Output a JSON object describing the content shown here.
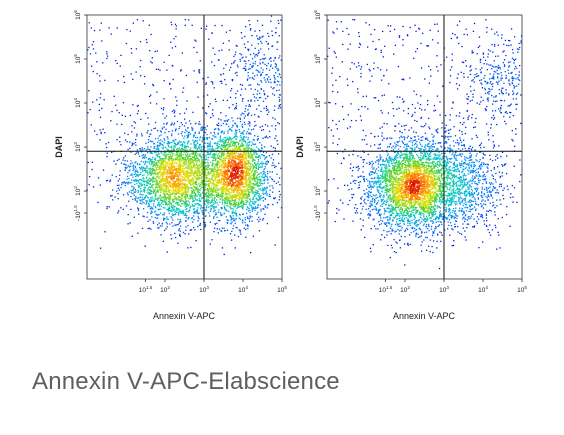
{
  "caption": "Annexin V-APC-Elabscience",
  "chart_data": [
    {
      "type": "scatter",
      "title": "",
      "xlabel": "Annexin V-APC",
      "ylabel": "DAPI",
      "x_scale": "log",
      "y_scale": "log",
      "xlim": [
        -31.6,
        100000
      ],
      "ylim": [
        -31.6,
        1000000
      ],
      "x_tick_labels": [
        "10^1.5",
        "10^2",
        "10^3",
        "10^4",
        "10^5"
      ],
      "y_tick_labels": [
        "-10^1.5",
        "10^2",
        "10^3",
        "10^4",
        "10^5",
        "10^6"
      ],
      "gate_x": 1000,
      "gate_y": 800,
      "grid": false,
      "color_mode": "density",
      "populations": [
        {
          "name": "",
          "x_center": 200,
          "y_center": 200,
          "points": 2600
        },
        {
          "name": "",
          "x_center": 6500,
          "y_center": 250,
          "points": 2200
        },
        {
          "name": "",
          "x_center": 40000,
          "y_center": 50000,
          "points": 350
        }
      ]
    },
    {
      "type": "scatter",
      "title": "",
      "xlabel": "Annexin V-APC",
      "ylabel": "DAPI",
      "x_scale": "log",
      "y_scale": "log",
      "xlim": [
        -31.6,
        100000
      ],
      "ylim": [
        -31.6,
        1000000
      ],
      "x_tick_labels": [
        "10^1.5",
        "10^2",
        "10^3",
        "10^4",
        "10^5"
      ],
      "y_tick_labels": [
        "-10^1.5",
        "10^2",
        "10^3",
        "10^4",
        "10^5",
        "10^6"
      ],
      "gate_x": 1000,
      "gate_y": 800,
      "grid": false,
      "color_mode": "density",
      "populations": [
        {
          "name": "",
          "x_center": 180,
          "y_center": 130,
          "points": 3400
        },
        {
          "name": "",
          "x_center": 5000,
          "y_center": 130,
          "points": 500
        },
        {
          "name": "",
          "x_center": 35000,
          "y_center": 40000,
          "points": 300
        }
      ]
    }
  ]
}
